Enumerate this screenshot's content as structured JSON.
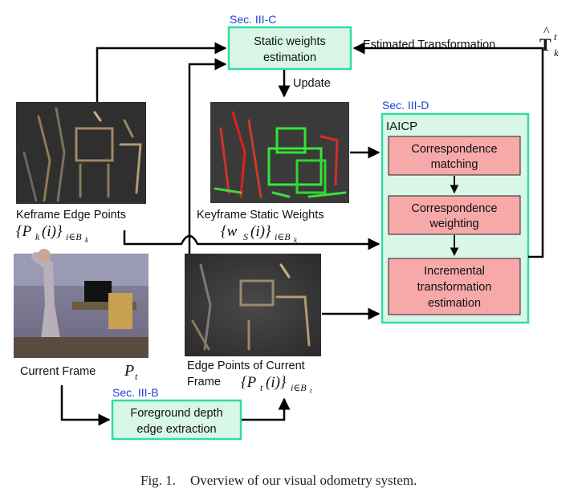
{
  "colors": {
    "green_box_fill": "#d9f7e8",
    "green_box_stroke": "#31dca2",
    "red_box_fill": "#f7a8a8",
    "sec_label": "#1f3fd1",
    "arrow": "#000000"
  },
  "diagram": {
    "sec_static": "Sec. III-C",
    "static_box": {
      "line1": "Static weights",
      "line2": "estimation"
    },
    "estimated_transform": "Estimated Transformation",
    "estimated_transform_symbol": {
      "base": "T",
      "sup": "t",
      "sub": "k"
    },
    "update_label": "Update",
    "sec_iaicp": "Sec. III-D",
    "iaicp_title": "IAICP",
    "corr_matching": {
      "line1": "Correspondence",
      "line2": "matching"
    },
    "corr_weighting": {
      "line1": "Correspondence",
      "line2": "weighting"
    },
    "incremental": {
      "line1": "Incremental",
      "line2": "transformation",
      "line3": "estimation"
    },
    "keyframe_label": "Keframe Edge Points",
    "keyframe_math": {
      "main": "{P",
      "sub1": "k",
      "mid": "(i)}",
      "sub2": "i∈B",
      "sub3": "k"
    },
    "static_weights_label": "Keyframe Static Weights",
    "static_weights_math": {
      "main": "{w",
      "sub1": "S",
      "mid": "(i)}",
      "sub2": "i∈B",
      "sub3": "k"
    },
    "current_frame_label": "Current Frame",
    "current_frame_math": {
      "main": "P",
      "sub": "t"
    },
    "edge_current_line1": "Edge Points of Current",
    "edge_current_line2": "Frame",
    "edge_current_math": {
      "main": "{P",
      "sub1": "t",
      "mid": "(i)}",
      "sub2": "i∈B",
      "sub3": "t"
    },
    "sec_foreground": "Sec. III-B",
    "foreground_box": {
      "line1": "Foreground depth",
      "line2": "edge extraction"
    }
  },
  "caption": {
    "label": "Fig. 1.",
    "text": "Overview of our visual odometry system."
  }
}
